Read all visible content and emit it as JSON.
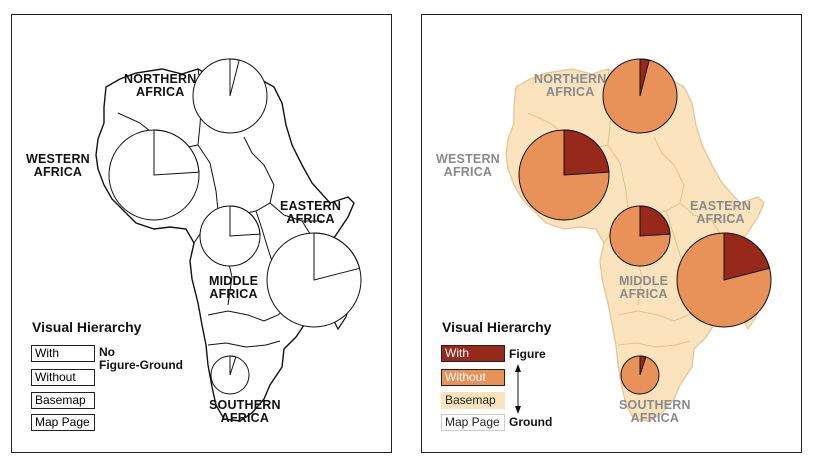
{
  "legend_title": "Visual Hierarchy",
  "legend_items": [
    "With",
    "Without",
    "Basemap",
    "Map Page"
  ],
  "left_note": [
    "No",
    "Figure-Ground"
  ],
  "right_note": {
    "top": "Figure",
    "bottom": "Ground"
  },
  "regions": {
    "northern": [
      "NORTHERN",
      "AFRICA"
    ],
    "western": [
      "WESTERN",
      "AFRICA"
    ],
    "eastern": [
      "EASTERN",
      "AFRICA"
    ],
    "middle": [
      "MIDDLE",
      "AFRICA"
    ],
    "southern": [
      "SOUTHERN",
      "AFRICA"
    ]
  },
  "colors": {
    "with": "#96291a",
    "without": "#e8925a",
    "basemap": "#fae3bd",
    "map_page": "#ffffff",
    "outline": "#111111"
  },
  "pie_shares_with": {
    "northern": 0.04,
    "western": 0.24,
    "middle": 0.24,
    "eastern": 0.21,
    "southern": 0.05
  }
}
